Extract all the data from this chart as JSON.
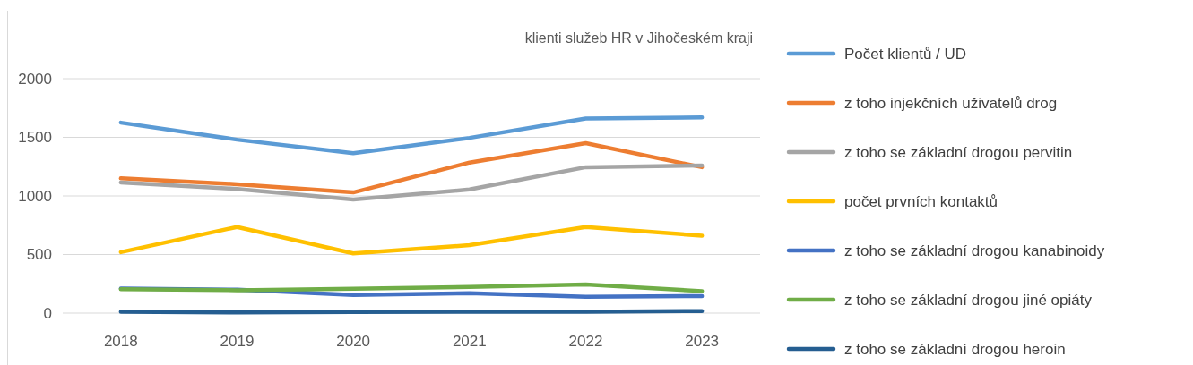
{
  "chart_data": {
    "type": "line",
    "title": "klienti služeb HR v Jihočeském kraji",
    "categories": [
      "2018",
      "2019",
      "2020",
      "2021",
      "2022",
      "2023"
    ],
    "series": [
      {
        "name": "Počet klientů / UD",
        "color": "#5b9bd5",
        "values": [
          1625,
          1480,
          1365,
          1495,
          1660,
          1670
        ]
      },
      {
        "name": "z toho injekčních uživatelů drog",
        "color": "#ed7d31",
        "values": [
          1150,
          1100,
          1030,
          1285,
          1450,
          1245
        ]
      },
      {
        "name": "z toho se základní drogou pervitin",
        "color": "#a5a5a5",
        "values": [
          1115,
          1060,
          970,
          1055,
          1245,
          1260
        ]
      },
      {
        "name": "počet prvních kontaktů",
        "color": "#ffc000",
        "values": [
          520,
          735,
          510,
          580,
          735,
          660
        ]
      },
      {
        "name": "z toho se základní drogou kanabinoidy",
        "color": "#4472c4",
        "values": [
          210,
          200,
          155,
          170,
          140,
          145
        ]
      },
      {
        "name": "z toho se základní drogou jiné opiáty",
        "color": "#70ad47",
        "values": [
          205,
          195,
          208,
          223,
          245,
          188
        ]
      },
      {
        "name": "z toho se základní drogou heroin",
        "color": "#255e91",
        "values": [
          12,
          5,
          10,
          12,
          12,
          18
        ]
      }
    ],
    "ylim": [
      0,
      2000
    ],
    "yticks": [
      0,
      500,
      1000,
      1500,
      2000
    ],
    "grid": "y",
    "legend": "right",
    "line_style": "solid",
    "marker": "none"
  }
}
